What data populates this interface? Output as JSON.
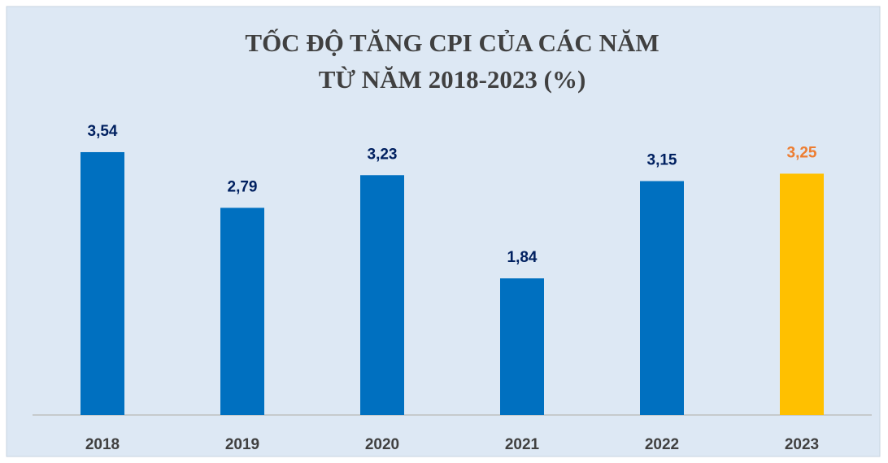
{
  "chart_data": {
    "type": "bar",
    "title": [
      "TỐC ĐỘ TĂNG CPI CỦA CÁC NĂM",
      "TỪ NĂM 2018-2023 (%)"
    ],
    "categories": [
      "2018",
      "2019",
      "2020",
      "2021",
      "2022",
      "2023"
    ],
    "values": [
      3.54,
      2.79,
      3.23,
      1.84,
      3.15,
      3.25
    ],
    "value_labels": [
      "3,54",
      "2,79",
      "3,23",
      "1,84",
      "3,15",
      "3,25"
    ],
    "colors": [
      "#0070c0",
      "#0070c0",
      "#0070c0",
      "#0070c0",
      "#0070c0",
      "#ffc000"
    ],
    "label_colors": [
      "#002060",
      "#002060",
      "#002060",
      "#002060",
      "#002060",
      "#ed7d31"
    ],
    "ylim": [
      0,
      4
    ]
  }
}
